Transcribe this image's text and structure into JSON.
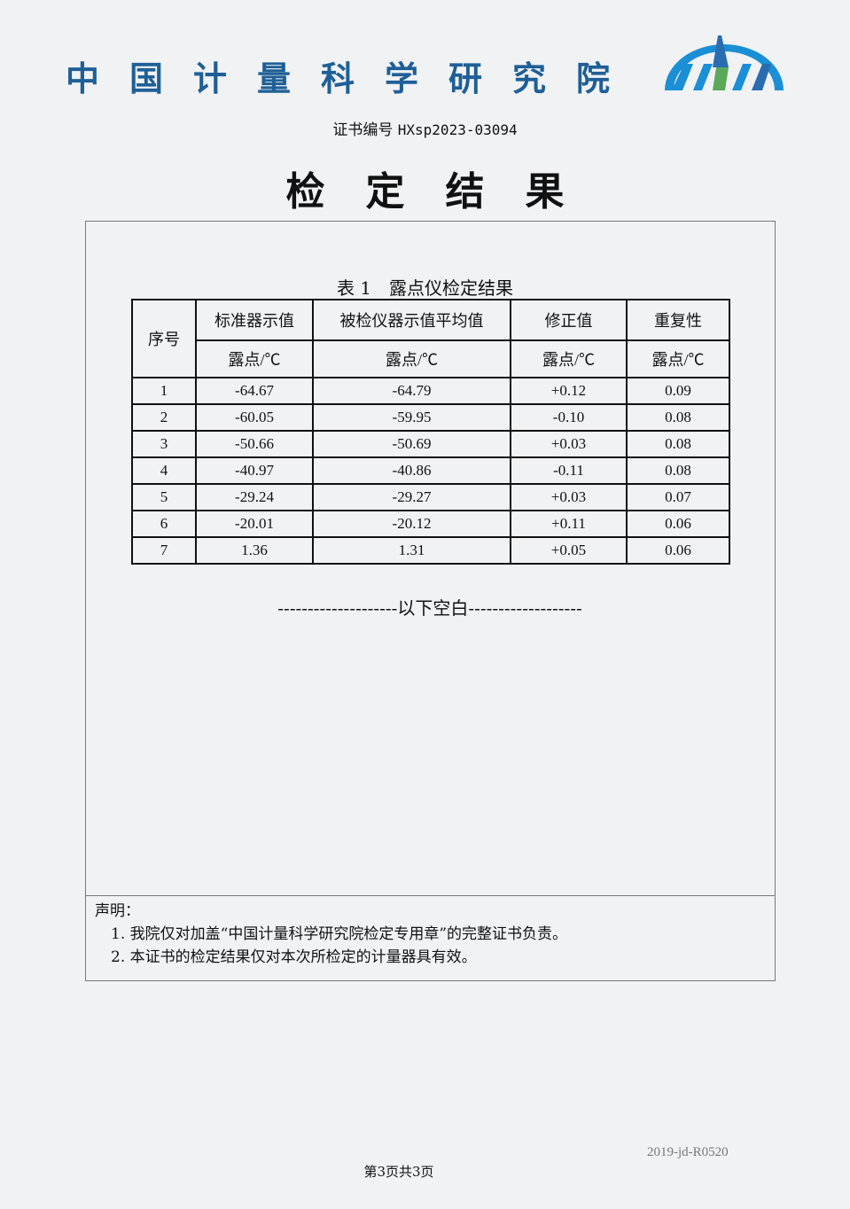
{
  "header": {
    "org_name": "中国计量科学研究院",
    "logo_text": "NIM",
    "cert_no_label": "证书编号",
    "cert_no": "HXsp2023-03094",
    "title": "检定结果"
  },
  "table": {
    "caption": "表 1　露点仪检定结果",
    "headers": [
      "序号",
      "标准器示值",
      "被检仪器示值平均值",
      "修正值",
      "重复性"
    ],
    "units": [
      "露点/℃",
      "露点/℃",
      "露点/℃",
      "露点/℃"
    ],
    "rows": [
      [
        "1",
        "-64.67",
        "-64.79",
        "+0.12",
        "0.09"
      ],
      [
        "2",
        "-60.05",
        "-59.95",
        "-0.10",
        "0.08"
      ],
      [
        "3",
        "-50.66",
        "-50.69",
        "+0.03",
        "0.08"
      ],
      [
        "4",
        "-40.97",
        "-40.86",
        "-0.11",
        "0.08"
      ],
      [
        "5",
        "-29.24",
        "-29.27",
        "+0.03",
        "0.07"
      ],
      [
        "6",
        "-20.01",
        "-20.12",
        "+0.11",
        "0.06"
      ],
      [
        "7",
        "1.36",
        "1.31",
        "+0.05",
        "0.06"
      ]
    ]
  },
  "blank_note": "--------------------以下空白-------------------",
  "declaration": {
    "title": "声明：",
    "items": [
      "1. 我院仅对加盖“中国计量科学研究院检定专用章”的完整证书负责。",
      "2. 本证书的检定结果仅对本次所检定的计量器具有效。"
    ]
  },
  "footer": {
    "form_code": "2019-jd-R0520",
    "page": "第3页共3页"
  },
  "colors": {
    "brand_blue": "#1f5f97",
    "logo_green": "#5aa85a"
  }
}
